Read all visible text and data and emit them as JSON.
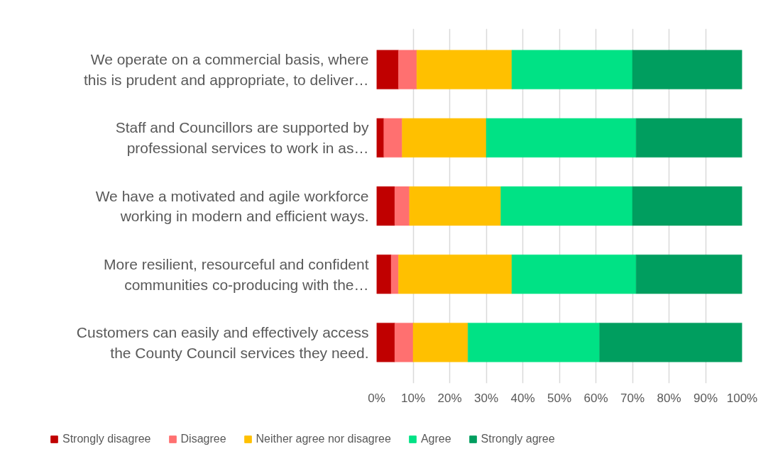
{
  "chart_data": {
    "type": "bar",
    "orientation": "horizontal",
    "stacked": true,
    "categories": [
      "We operate on a commercial basis, where\nthis is prudent and appropriate, to deliver…",
      "Staff and Councillors are supported by\nprofessional services to work in as…",
      "We have a motivated and agile workforce\nworking in modern and efficient ways.",
      "More resilient, resourceful and confident\ncommunities co-producing with the…",
      "Customers can easily and effectively access\nthe County Council services they need."
    ],
    "series": [
      {
        "name": "Strongly disagree",
        "color": "#c00000",
        "values": [
          6,
          2,
          5,
          4,
          5
        ]
      },
      {
        "name": "Disagree",
        "color": "#ff7070",
        "values": [
          5,
          5,
          4,
          2,
          5
        ]
      },
      {
        "name": "Neither agree nor disagree",
        "color": "#ffc000",
        "values": [
          26,
          23,
          25,
          31,
          15
        ]
      },
      {
        "name": "Agree",
        "color": "#00e285",
        "values": [
          33,
          41,
          36,
          34,
          36
        ]
      },
      {
        "name": "Strongly agree",
        "color": "#009e5f",
        "values": [
          30,
          29,
          30,
          29,
          39
        ]
      }
    ],
    "xlim": [
      0,
      100
    ],
    "xticks": [
      {
        "value": 0,
        "label": "0%"
      },
      {
        "value": 10,
        "label": "10%"
      },
      {
        "value": 20,
        "label": "20%"
      },
      {
        "value": 30,
        "label": "30%"
      },
      {
        "value": 40,
        "label": "40%"
      },
      {
        "value": 50,
        "label": "50%"
      },
      {
        "value": 60,
        "label": "60%"
      },
      {
        "value": 70,
        "label": "70%"
      },
      {
        "value": 80,
        "label": "80%"
      },
      {
        "value": 90,
        "label": "90%"
      },
      {
        "value": 100,
        "label": "100%"
      }
    ],
    "grid": "x",
    "legend": "bottom"
  }
}
